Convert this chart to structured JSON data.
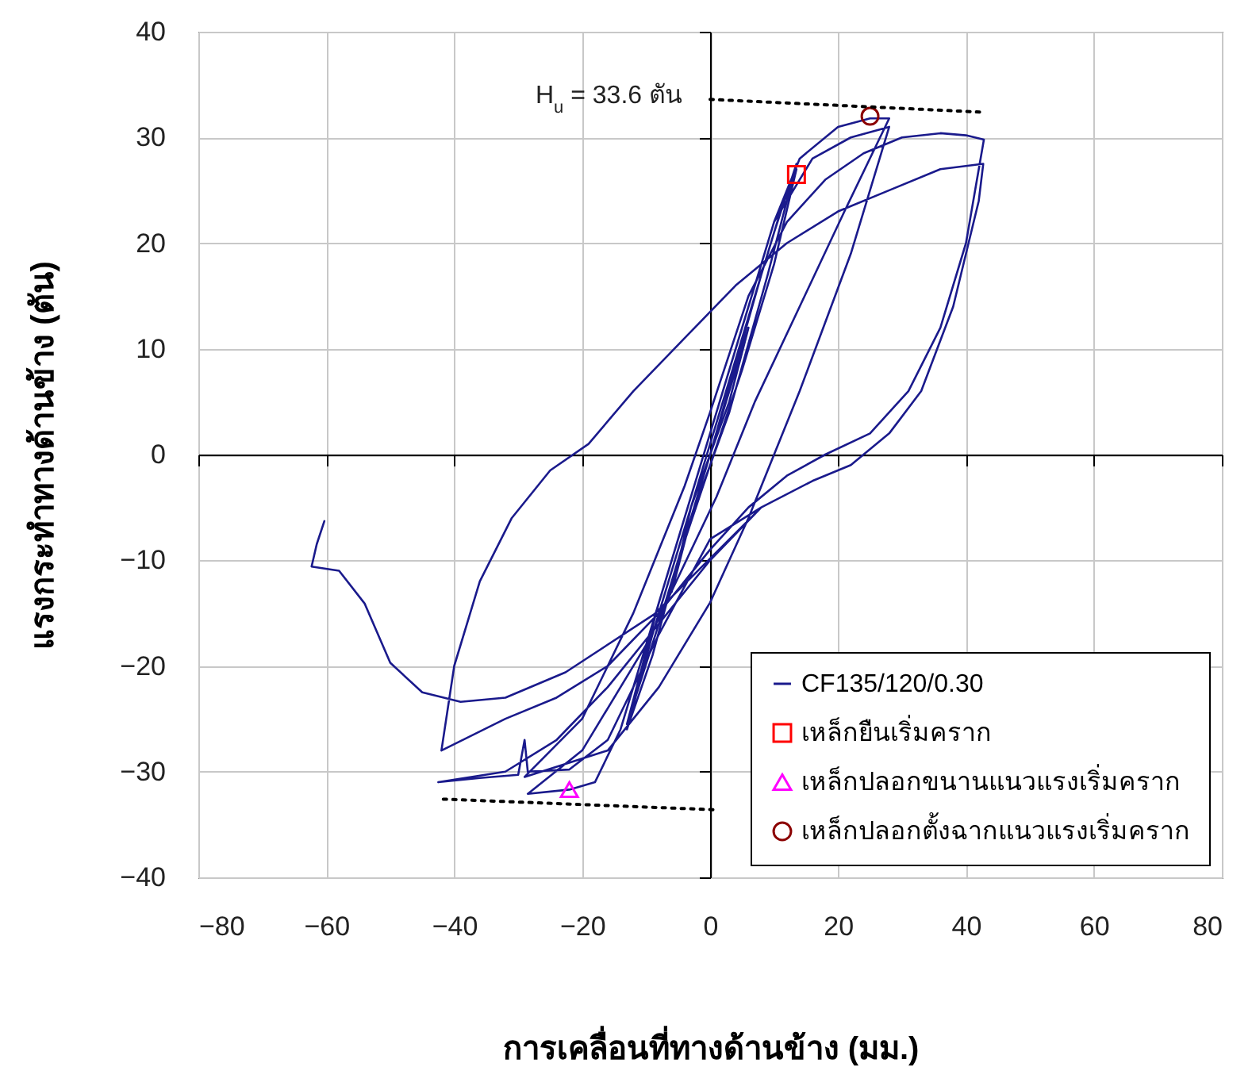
{
  "chart_data": {
    "type": "line",
    "xlabel": "การเคลื่อนที่ทางด้านข้าง (มม.)",
    "ylabel": "แรงกระทำทางด้านข้าง (ตัน)",
    "xlim": [
      -80,
      80
    ],
    "xticks": [
      -80,
      -60,
      -40,
      -20,
      0,
      20,
      40,
      60,
      80
    ],
    "ylim": [
      -40,
      40
    ],
    "yticks": [
      -40,
      -30,
      -20,
      -10,
      0,
      10,
      20,
      30,
      40
    ],
    "grid": true,
    "legend": "bottom right",
    "annotations": [
      "H$_{u}$ = 33.6 ตัน"
    ],
    "series": [
      {
        "name": "CF135/120/0.30",
        "color": "#1a1a8c",
        "marker": "none",
        "line_style": "solid",
        "x": [
          0,
          3,
          6,
          3,
          0,
          -3,
          -6,
          -3,
          0,
          8,
          11,
          13.5,
          10,
          5,
          0,
          -5,
          -9,
          -13,
          -9,
          -4,
          0,
          5,
          10,
          13.5,
          9,
          3,
          -3,
          -8,
          -13,
          -8,
          -2,
          2,
          6,
          10,
          14,
          20,
          25,
          28,
          21,
          14,
          7,
          1,
          -10,
          -20,
          -28.5,
          -22,
          -18,
          -14,
          -10,
          -6,
          -2,
          4,
          10,
          16,
          22,
          28,
          22,
          14,
          6,
          0,
          -8,
          -16,
          -29,
          -20,
          -12,
          -4,
          0,
          6,
          12,
          18,
          24,
          30,
          36,
          40,
          42.8,
          42,
          40,
          36,
          31,
          25,
          18,
          12,
          6,
          0,
          -8,
          -16,
          -24,
          -32,
          -42,
          -40,
          -36,
          -31,
          -25,
          -19,
          -12,
          -4,
          4,
          12,
          20,
          28,
          36,
          42.7,
          42,
          38,
          33,
          28,
          22,
          16,
          8,
          0,
          -8,
          -16,
          -24,
          -32,
          -42.5,
          -36,
          -30,
          -29,
          -28.5,
          -22,
          -16,
          -8,
          0,
          8,
          -8.7,
          -22.6,
          -32,
          -39,
          -45,
          -50,
          -54,
          -58,
          -62.3,
          -61.5,
          -60.3
        ],
        "values": [
          0,
          6,
          12,
          5,
          0,
          -6,
          -13,
          -5,
          0,
          17,
          23,
          27,
          18,
          8,
          -1,
          -10,
          -19,
          -26,
          -17,
          -7,
          1,
          11,
          21,
          27.5,
          17,
          4,
          -6,
          -16,
          -25.5,
          -14,
          -2,
          6,
          14,
          22,
          28,
          31,
          31.8,
          31.8,
          23,
          14,
          5,
          -4,
          -18,
          -28,
          -32.1,
          -31.7,
          -31,
          -26,
          -18,
          -10,
          -2,
          10,
          22,
          28,
          30,
          31,
          19,
          6,
          -6,
          -14,
          -22,
          -28,
          -30.5,
          -25,
          -15,
          -3,
          4,
          15,
          22,
          26,
          28.5,
          30,
          30.4,
          30.2,
          29.8,
          27,
          20,
          12,
          6,
          2,
          0,
          -2,
          -5,
          -9,
          -15,
          -20,
          -23,
          -25,
          -28,
          -20,
          -12,
          -6,
          -1.5,
          1,
          6,
          11,
          16,
          20,
          23,
          25,
          27,
          27.5,
          24,
          14,
          6,
          2,
          -1,
          -2.5,
          -5,
          -10,
          -16,
          -22,
          -27,
          -30,
          -31,
          -30.6,
          -30.3,
          -27,
          -30,
          -29.8,
          -27,
          -17,
          -8,
          -5,
          -15.1,
          -20.6,
          -23,
          -23.4,
          -22.5,
          -19.7,
          -14.1,
          -11,
          -10.6,
          -8.5,
          -6.3
        ]
      },
      {
        "name": "เหล็กยืนเริ่มคราก",
        "type": "scatter",
        "color": "#ff0000",
        "marker": "square",
        "x": [
          13.5
        ],
        "values": [
          26.5
        ]
      },
      {
        "name": "เหล็กปลอกขนานแนวแรงเริ่มคราก",
        "type": "scatter",
        "color": "#ff00ff",
        "marker": "triangle",
        "x": [
          -22
        ],
        "values": [
          -31.7
        ]
      },
      {
        "name": "เหล็กปลอกตั้งฉากแนวแรงเริ่มคราก",
        "type": "scatter",
        "color": "#8b0000",
        "marker": "circle",
        "x": [
          25
        ],
        "values": [
          32
        ]
      },
      {
        "type": "line",
        "color": "#000000",
        "marker": "none",
        "line_style": "dotted",
        "x": [
          0,
          42.2
        ],
        "values": [
          33.6,
          32.4
        ]
      },
      {
        "type": "line",
        "color": "#000000",
        "marker": "none",
        "line_style": "dotted",
        "x": [
          -41.7,
          0.5
        ],
        "values": [
          -32.6,
          -33.6
        ]
      }
    ]
  }
}
